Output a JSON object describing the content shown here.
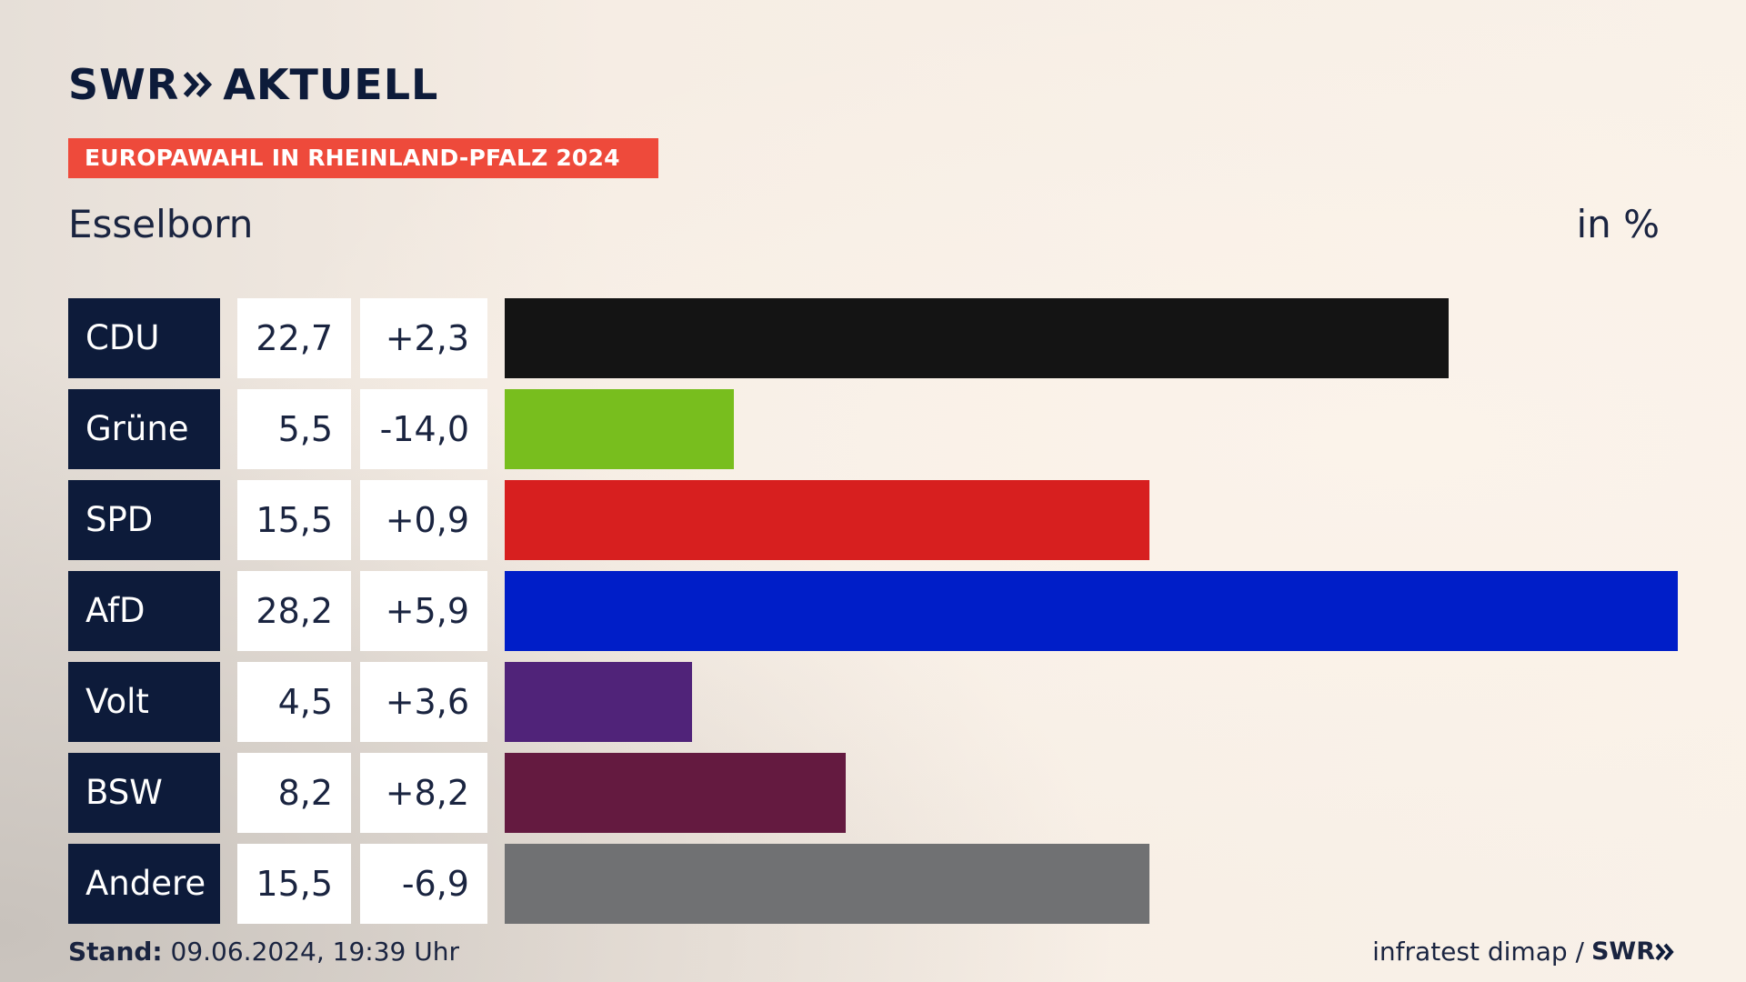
{
  "header": {
    "logo_text": "SWR",
    "logo_suffix": "AKTUELL",
    "banner": "EUROPAWAHL IN RHEINLAND-PFALZ 2024",
    "place": "Esselborn",
    "unit": "in %"
  },
  "footer": {
    "stand_label": "Stand:",
    "stand_value": " 09.06.2024, 19:39 Uhr",
    "source": "infratest dimap / ",
    "source_logo": "SWR"
  },
  "chart_data": {
    "type": "bar",
    "orientation": "horizontal",
    "categories": [
      "CDU",
      "Grüne",
      "SPD",
      "AfD",
      "Volt",
      "BSW",
      "Andere"
    ],
    "values": [
      22.7,
      5.5,
      15.5,
      28.2,
      4.5,
      8.2,
      15.5
    ],
    "values_label": [
      "22,7",
      "5,5",
      "15,5",
      "28,2",
      "4,5",
      "8,2",
      "15,5"
    ],
    "changes": [
      2.3,
      -14.0,
      0.9,
      5.9,
      3.6,
      8.2,
      -6.9
    ],
    "changes_label": [
      "+2,3",
      "-14,0",
      "+0,9",
      "+5,9",
      "+3,6",
      "+8,2",
      "-6,9"
    ],
    "colors": [
      "#141414",
      "#78be1e",
      "#d71f1f",
      "#001ec8",
      "#502379",
      "#641a40",
      "#707173"
    ],
    "ylabel": "in %",
    "xlim": [
      0,
      28.2
    ]
  }
}
